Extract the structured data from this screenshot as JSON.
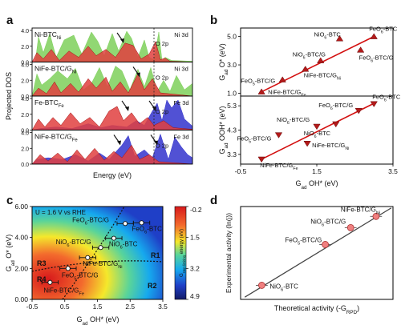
{
  "panels": {
    "a": "a",
    "b": "b",
    "c": "c",
    "d": "d"
  },
  "colors": {
    "pdos_o2p": "#e04040",
    "pdos_ni3d": "#7ed05a",
    "pdos_fe3d": "#3333cc",
    "marker_b": "#b31a1a",
    "fit_line_b": "#d31010",
    "marker_d": "#f08080",
    "fit_line_d": "#444444"
  },
  "chart_data": [
    {
      "id": "a",
      "type": "area",
      "xlabel": "Energy (eV)",
      "ylabel": "Projected DOS",
      "subpanels": [
        {
          "label": "Ni-BTC",
          "sub": "Ni",
          "series": [
            "Ni 3d",
            "O 2p"
          ],
          "ylim": [
            0,
            4
          ],
          "yticks": [
            "0.0",
            "2.0",
            "4.0"
          ]
        },
        {
          "label": "NiFe-BTC/G",
          "sub": "Ni",
          "series": [
            "Ni 3d",
            "O 2p"
          ],
          "ylim": [
            0,
            4
          ],
          "yticks": [
            "0.0",
            "2.0",
            "4.0"
          ]
        },
        {
          "label": "Fe-BTC",
          "sub": "Fe",
          "series": [
            "Fe 3d",
            "O 2p"
          ],
          "ylim": [
            0,
            4
          ],
          "yticks": [
            "0.0",
            "2.0",
            "4.0"
          ]
        },
        {
          "label": "NiFe-BTC/G",
          "sub": "Fe",
          "series": [
            "Fe 3d",
            "O 2p"
          ],
          "ylim": [
            0,
            4
          ],
          "yticks": [
            "0.0",
            "2.0",
            "4.0"
          ]
        }
      ]
    },
    {
      "id": "b",
      "type": "scatter",
      "xlabel": "G",
      "xlabel_sub": "ad",
      "xlabel_rest": " OH* (eV)",
      "xlim": [
        -0.5,
        3.5
      ],
      "xticks": [
        "-0.5",
        "1.5",
        "3.5"
      ],
      "top": {
        "ylabel": "G",
        "ylabel_sub": "ad",
        "ylabel_rest": " O* (eV)",
        "ylim": [
          0.8,
          5.6
        ],
        "yticks": [
          "1.0",
          "3.0",
          "5.0"
        ],
        "fit": [
          [
            0.05,
            1.1
          ],
          [
            3.0,
            5.0
          ]
        ],
        "points": [
          {
            "label": "NiO",
            "label_sub": "6",
            "label_rest": "-BTC",
            "x": 2.1,
            "y": 4.85
          },
          {
            "label": "FeO",
            "label_sub": "6",
            "label_rest": "-BTC",
            "x": 3.0,
            "y": 5.0
          },
          {
            "label": "NiO",
            "label_sub": "6",
            "label_rest": "-BTC/G",
            "x": 1.6,
            "y": 3.3
          },
          {
            "label": "FeO",
            "label_sub": "6",
            "label_rest": "-BTC/G",
            "x": 2.65,
            "y": 4.05
          },
          {
            "label": "NiFe-BTC/G",
            "label_sub": "Ni",
            "label_rest": "",
            "x": 1.2,
            "y": 2.7
          },
          {
            "label": "FeO",
            "label_sub": "5",
            "label_rest": "-BTC/G",
            "x": 0.6,
            "y": 1.95
          },
          {
            "label": "NiFe-BTC/G",
            "label_sub": "Fe",
            "label_rest": "",
            "x": 0.05,
            "y": 1.1
          }
        ]
      },
      "bottom": {
        "ylabel": "G",
        "ylabel_sub": "ad",
        "ylabel_rest": " OOH* (eV)",
        "ylim": [
          2.9,
          5.7
        ],
        "yticks": [
          "3.3",
          "4.3",
          "5.3"
        ],
        "fit": [
          [
            0.05,
            3.1
          ],
          [
            3.0,
            5.4
          ]
        ],
        "points": [
          {
            "label": "FeO",
            "label_sub": "6",
            "label_rest": "-BTC",
            "x": 3.0,
            "y": 5.38
          },
          {
            "label": "FeO",
            "label_sub": "6",
            "label_rest": "-BTC/G",
            "x": 2.6,
            "y": 5.1
          },
          {
            "label": "NiO",
            "label_sub": "6",
            "label_rest": "-BTC",
            "x": 2.0,
            "y": 4.55
          },
          {
            "label": "NiO",
            "label_sub": "6",
            "label_rest": "-BTC/G",
            "x": 1.5,
            "y": 4.45
          },
          {
            "label": "FeO",
            "label_sub": "5",
            "label_rest": "-BTC/G",
            "x": 0.5,
            "y": 4.1
          },
          {
            "label": "NiFe-BTC/G",
            "label_sub": "Ni",
            "label_rest": "",
            "x": 1.25,
            "y": 3.75
          },
          {
            "label": "NiFe-BTC/G",
            "label_sub": "Fe",
            "label_rest": "",
            "x": 0.05,
            "y": 3.1
          }
        ]
      }
    },
    {
      "id": "c",
      "type": "heatmap",
      "annotation": "U = 1.6 V vs RHE",
      "xlabel": "G",
      "xlabel_sub": "ad",
      "xlabel_rest": " OH* (eV)",
      "ylabel": "G",
      "ylabel_sub": "ad",
      "ylabel_rest": " O* (eV)",
      "xlim": [
        -0.5,
        3.5
      ],
      "ylim": [
        0,
        6
      ],
      "xticks": [
        "-0.5",
        "0.5",
        "1.5",
        "2.5",
        "3.5"
      ],
      "yticks": [
        "0.00",
        "2.00",
        "4.00",
        "6.00"
      ],
      "colorbar": {
        "label": "G",
        "label_sub": "step-limiting",
        "label_rest": " energy (eV)",
        "ticks": [
          "-0.2",
          "1.5",
          "3.2",
          "4.9"
        ],
        "range": [
          -0.2,
          4.9
        ]
      },
      "regions": [
        "R1",
        "R2",
        "R3",
        "R4"
      ],
      "points": [
        {
          "label": "FeO",
          "label_sub": "6",
          "label_rest": "-BTC/G",
          "x": 2.35,
          "y": 4.9,
          "xerr": 0.25
        },
        {
          "label": "FeO",
          "label_sub": "6",
          "label_rest": "-BTC",
          "x": 2.85,
          "y": 4.95,
          "xerr": 0.25
        },
        {
          "label": "NiO",
          "label_sub": "6",
          "label_rest": "-BTC/G",
          "x": 1.6,
          "y": 3.35,
          "xerr": 0.25
        },
        {
          "label": "NiO",
          "label_sub": "6",
          "label_rest": "-BTC",
          "x": 2.0,
          "y": 3.95,
          "xerr": 0.25
        },
        {
          "label": "NiFe-BTC/G",
          "label_sub": "Ni",
          "label_rest": "",
          "x": 1.2,
          "y": 2.7,
          "xerr": 0.25
        },
        {
          "label": "FeO",
          "label_sub": "5",
          "label_rest": "-BTC/G",
          "x": 0.6,
          "y": 2.0,
          "xerr": 0.25
        },
        {
          "label": "NiFe-BTC/G",
          "label_sub": "Fe",
          "label_rest": "",
          "x": 0.05,
          "y": 1.1,
          "xerr": 0.25
        }
      ]
    },
    {
      "id": "d",
      "type": "scatter",
      "xlabel": "Theoretical activity (-G",
      "xlabel_sub": "RPD",
      "xlabel_rest": ")",
      "ylabel": "Experimental activity (ln(j))",
      "xlim": [
        -1.4,
        0.4
      ],
      "ylim": [
        1.6,
        4.9
      ],
      "fit": [
        [
          -1.35,
          1.68
        ],
        [
          0.38,
          4.85
        ]
      ],
      "points": [
        {
          "label": "NiFe-BTC/G",
          "label_sub": "Ni",
          "label_rest": "",
          "x": 0.2,
          "y": 4.55,
          "xerr": 0.07
        },
        {
          "label": "NiO",
          "label_sub": "6",
          "label_rest": "-BTC/G",
          "x": -0.1,
          "y": 4.15,
          "xerr": 0.07
        },
        {
          "label": "FeO",
          "label_sub": "5",
          "label_rest": "-BTC/G",
          "x": -0.4,
          "y": 3.55,
          "xerr": 0.07
        },
        {
          "label": "NiO",
          "label_sub": "6",
          "label_rest": "-BTC",
          "x": -1.15,
          "y": 2.1,
          "xerr": 0.07
        }
      ]
    }
  ]
}
